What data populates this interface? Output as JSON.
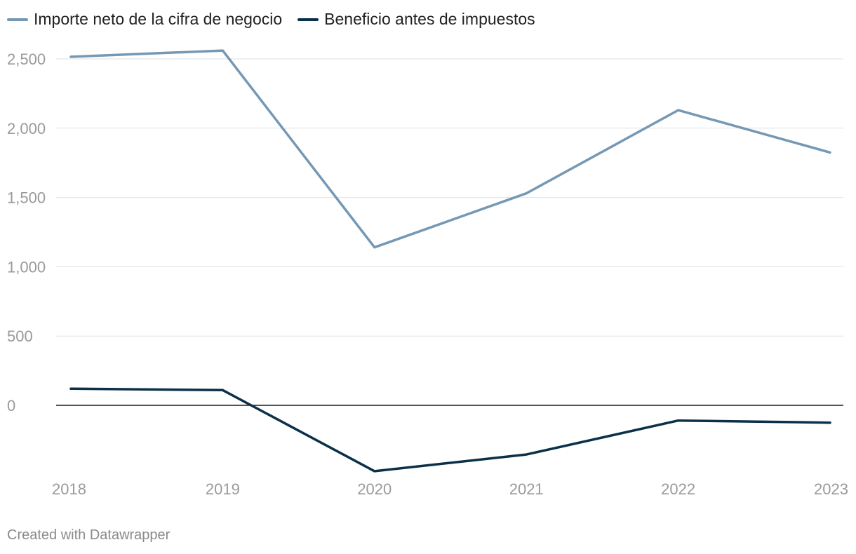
{
  "chart_data": {
    "type": "line",
    "title": "",
    "xlabel": "",
    "ylabel": "",
    "x": [
      "2018",
      "2019",
      "2020",
      "2021",
      "2022",
      "2023"
    ],
    "series": [
      {
        "name": "Importe neto de la cifra de negocio",
        "color": "#7598b4",
        "values": [
          2515,
          2560,
          1140,
          1530,
          2130,
          1825
        ]
      },
      {
        "name": "Beneficio antes de impuestos",
        "color": "#0b3049",
        "values": [
          120,
          110,
          -475,
          -355,
          -110,
          -125
        ]
      }
    ],
    "yticks": [
      0,
      500,
      1000,
      1500,
      2000,
      2500
    ],
    "ytick_labels": [
      "0",
      "500",
      "1,000",
      "1,500",
      "2,000",
      "2,500"
    ],
    "ylim": [
      -500,
      2650
    ],
    "grid": true,
    "legend": "top-left"
  },
  "footer": {
    "credit": "Created with Datawrapper"
  }
}
